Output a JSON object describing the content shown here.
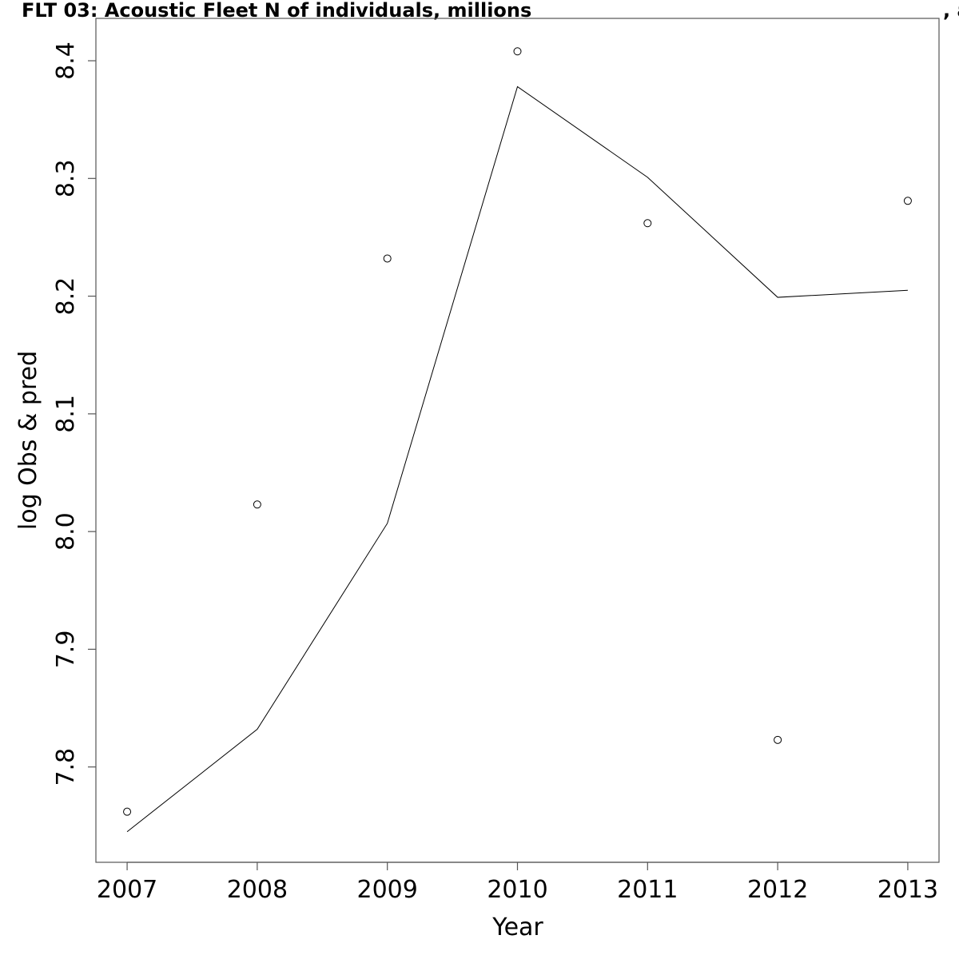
{
  "chart_data": {
    "type": "line",
    "title": "FLT 03: Acoustic Fleet   N of individuals, millions",
    "title_suffix": ", a",
    "xlabel": "Year",
    "ylabel": "log Obs & pred",
    "x_ticks": [
      2007,
      2008,
      2009,
      2010,
      2011,
      2012,
      2013
    ],
    "y_ticks": [
      "7.8",
      "7.9",
      "8.0",
      "8.1",
      "8.2",
      "8.3",
      "8.4"
    ],
    "xlim": [
      2006.76,
      2013.24
    ],
    "ylim": [
      7.719,
      8.436
    ],
    "grid": false,
    "series": [
      {
        "style": "points",
        "marker": "open-circle",
        "x": [
          2007,
          2008,
          2009,
          2010,
          2011,
          2012,
          2013
        ],
        "y": [
          7.762,
          8.023,
          8.232,
          8.408,
          8.262,
          7.823,
          8.281
        ]
      },
      {
        "style": "line",
        "x": [
          2007,
          2008,
          2009,
          2010,
          2011,
          2012,
          2013
        ],
        "y": [
          7.745,
          7.832,
          8.007,
          8.378,
          8.301,
          8.199,
          8.205
        ]
      }
    ]
  }
}
